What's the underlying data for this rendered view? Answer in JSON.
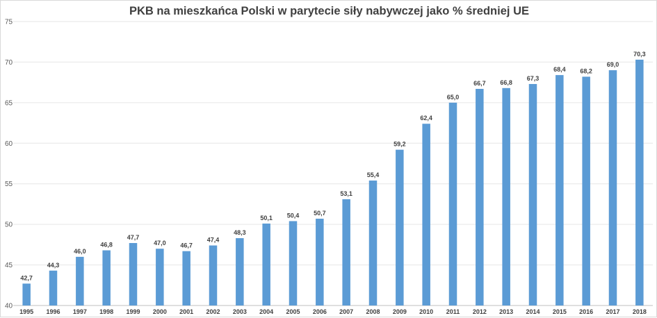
{
  "chart_data": {
    "type": "bar",
    "title": "PKB na mieszkańca Polski w parytecie siły nabywczej jako % średniej UE",
    "xlabel": "",
    "ylabel": "",
    "ylim": [
      40,
      75
    ],
    "yticks": [
      40,
      45,
      50,
      55,
      60,
      65,
      70,
      75
    ],
    "grid": true,
    "legend": "none",
    "bar_color": "#5b9bd5",
    "categories": [
      "1995",
      "1996",
      "1997",
      "1998",
      "1999",
      "2000",
      "2001",
      "2002",
      "2003",
      "2004",
      "2005",
      "2006",
      "2007",
      "2008",
      "2009",
      "2010",
      "2011",
      "2012",
      "2013",
      "2014",
      "2015",
      "2016",
      "2017",
      "2018"
    ],
    "values": [
      42.7,
      44.3,
      46.0,
      46.8,
      47.7,
      47.0,
      46.7,
      47.4,
      48.3,
      50.1,
      50.4,
      50.7,
      53.1,
      55.4,
      59.2,
      62.4,
      65.0,
      66.7,
      66.8,
      67.3,
      68.4,
      68.2,
      69.0,
      70.3
    ],
    "data_labels": [
      "42,7",
      "44,3",
      "46,0",
      "46,8",
      "47,7",
      "47,0",
      "46,7",
      "47,4",
      "48,3",
      "50,1",
      "50,4",
      "50,7",
      "53,1",
      "55,4",
      "59,2",
      "62,4",
      "65,0",
      "66,7",
      "66,8",
      "67,3",
      "68,4",
      "68,2",
      "69,0",
      "70,3"
    ]
  }
}
